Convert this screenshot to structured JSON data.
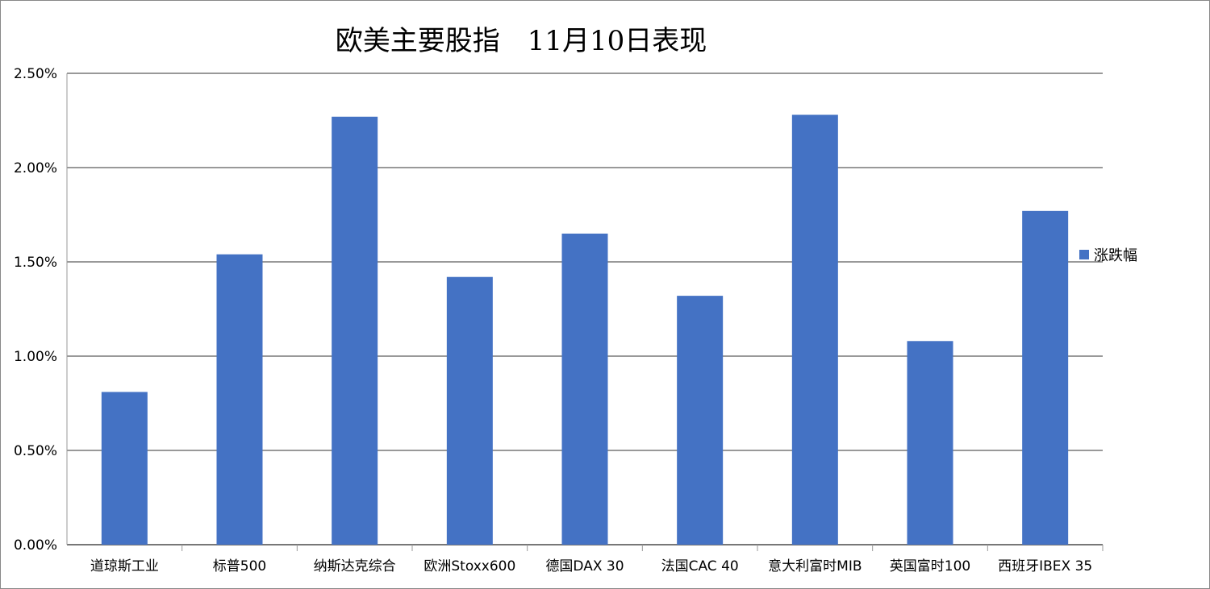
{
  "chart_data": {
    "type": "bar",
    "title": "欧美主要股指　11月10日表现",
    "categories": [
      "道琼斯工业",
      "标普500",
      "纳斯达克综合",
      "欧洲Stoxx600",
      "德国DAX 30",
      "法国CAC 40",
      "意大利富时MIB",
      "英国富时100",
      "西班牙IBEX 35"
    ],
    "series": [
      {
        "name": "涨跌幅",
        "values": [
          0.81,
          1.54,
          2.27,
          1.42,
          1.65,
          1.32,
          2.28,
          1.08,
          1.77
        ],
        "color": "#4472C4"
      }
    ],
    "ylim": [
      0,
      2.5
    ],
    "yticks": [
      "0.00%",
      "0.50%",
      "1.00%",
      "1.50%",
      "2.00%",
      "2.50%"
    ],
    "grid": true,
    "legend": "right"
  }
}
